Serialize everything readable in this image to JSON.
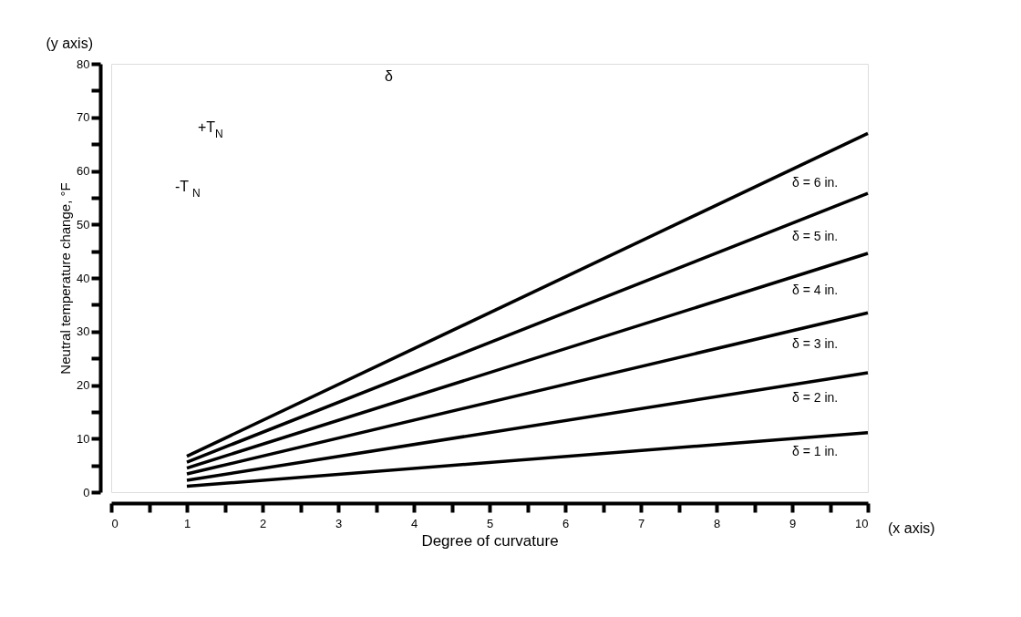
{
  "chart_data": {
    "type": "line",
    "xlabel": "Degree of curvature",
    "ylabel": "Neutral temperature change, °F",
    "x": [
      1,
      10
    ],
    "series": [
      {
        "name": "δ = 1 in.",
        "color": "#000000",
        "values": [
          1.1,
          11.1
        ]
      },
      {
        "name": "δ = 2 in.",
        "color": "#000000",
        "values": [
          2.2,
          22.3
        ]
      },
      {
        "name": "δ = 3 in.",
        "color": "#000000",
        "values": [
          3.4,
          33.5
        ]
      },
      {
        "name": "δ = 4 in.",
        "color": "#000000",
        "values": [
          4.5,
          44.6
        ]
      },
      {
        "name": "δ = 5 in.",
        "color": "#000000",
        "values": [
          5.6,
          55.8
        ]
      },
      {
        "name": "δ = 6 in.",
        "color": "#000000",
        "values": [
          6.7,
          67.0
        ]
      }
    ],
    "xlim": [
      0,
      10
    ],
    "ylim": [
      0,
      80
    ],
    "xticks": [
      0,
      {
        "value": 0.5,
        "label": null
      },
      1,
      {
        "value": 1.5,
        "label": null
      },
      2,
      {
        "value": 2.5,
        "label": null
      },
      3,
      {
        "value": 3.5,
        "label": null
      },
      4,
      {
        "value": 4.5,
        "label": null
      },
      5,
      {
        "value": 5.5,
        "label": null
      },
      6,
      {
        "value": 6.5,
        "label": null
      },
      7,
      {
        "value": 7.5,
        "label": null
      },
      8,
      {
        "value": 8.5,
        "label": null
      },
      9,
      {
        "value": 9.5,
        "label": null
      },
      10
    ],
    "yticks": [
      0,
      {
        "value": 5,
        "label": null
      },
      10,
      {
        "value": 15,
        "label": null
      },
      20,
      {
        "value": 25,
        "label": null
      },
      30,
      {
        "value": 35,
        "label": null
      },
      40,
      {
        "value": 45,
        "label": null
      },
      50,
      {
        "value": 55,
        "label": null
      },
      60,
      {
        "value": 65,
        "label": null
      },
      70,
      {
        "value": 75,
        "label": null
      },
      80
    ],
    "annotations": [
      "(y axis)",
      "(x axis)",
      "δ",
      "+T$_{N}$",
      "-T$_{N}$"
    ],
    "grid": false,
    "legend": false,
    "marker": "none",
    "line_style": "solid"
  }
}
